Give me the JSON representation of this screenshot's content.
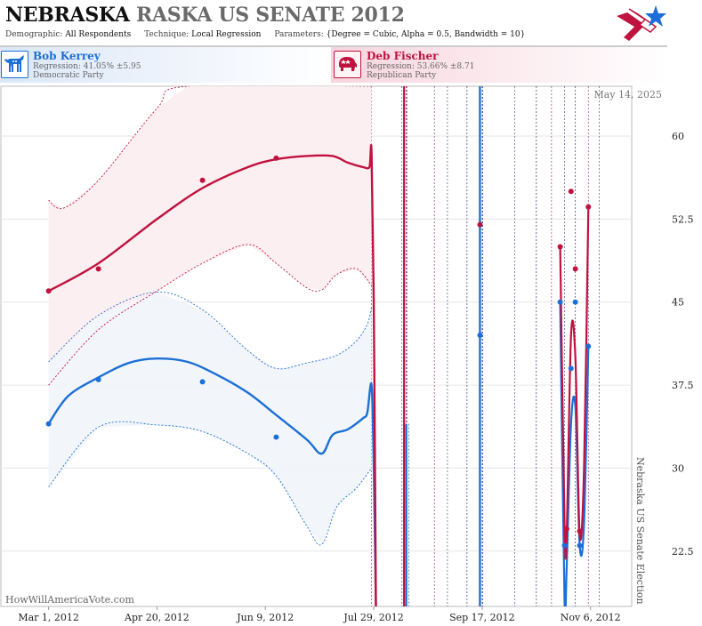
{
  "header": {
    "title_state": "NEBRASKA",
    "title_race": "RASKA US SENATE 2012",
    "demographic_label": "Demographic:",
    "demographic": "All Respondents",
    "technique_label": "Technique:",
    "technique": "Local Regression",
    "parameters_label": "Parameters:",
    "parameters": "{Degree = Cubic, Alpha = 0.5, Bandwidth = 10}"
  },
  "candidates": [
    {
      "name": "Bob Kerrey",
      "regression": "Regression: 41.05% ±5.95",
      "party": "Democratic Party",
      "icon": "donkey-icon",
      "color": "#1c6fd6"
    },
    {
      "name": "Deb Fischer",
      "regression": "Regression: 53.66% ±8.71",
      "party": "Republican Party",
      "icon": "elephant-icon",
      "color": "#c0123e"
    }
  ],
  "colors": {
    "dem": "#1c6fd6",
    "rep": "#c0123e",
    "dem_band": "#f1f5fb",
    "rep_band": "#fcedf1"
  },
  "date_label": "May 14, 2025",
  "vertical_label": "Nebraska US Senate Election",
  "credit": "HowWillAmericaVote.com",
  "chart_data": {
    "type": "line",
    "ylim": [
      17.5,
      64.5
    ],
    "yticks": [
      22.5,
      30,
      37.5,
      45,
      52.5,
      60
    ],
    "ytick_labels": [
      "22.5",
      "30",
      "37.5",
      "45",
      "52.5",
      "60"
    ],
    "xlim": [
      "2012-02-08",
      "2012-11-25"
    ],
    "xticks": [
      "2012-03-01",
      "2012-04-20",
      "2012-06-09",
      "2012-07-29",
      "2012-09-17",
      "2012-11-06"
    ],
    "xtick_labels": [
      "Mar 1, 2012",
      "Apr 20, 2012",
      "Jun 9, 2012",
      "Jul 29, 2012",
      "Sep 17, 2012",
      "Nov 6, 2012"
    ],
    "poll_dates": [
      "2012-07-28",
      "2012-08-11",
      "2012-08-13",
      "2012-08-26",
      "2012-09-01",
      "2012-09-10",
      "2012-09-17",
      "2012-10-02",
      "2012-10-12",
      "2012-10-19",
      "2012-10-25",
      "2012-10-30",
      "2012-11-05",
      "2012-11-10"
    ],
    "series": [
      {
        "name": "Bob Kerrey",
        "color": "#1c6fd6",
        "points": [
          [
            "2012-03-01",
            34
          ],
          [
            "2012-03-24",
            38
          ],
          [
            "2012-05-11",
            37.8
          ],
          [
            "2012-06-14",
            32.8
          ],
          [
            "2012-09-16",
            42
          ],
          [
            "2012-10-23",
            45
          ],
          [
            "2012-10-25",
            23
          ],
          [
            "2012-10-28",
            39
          ],
          [
            "2012-10-30",
            45
          ],
          [
            "2012-11-01",
            23
          ],
          [
            "2012-11-05",
            41
          ]
        ],
        "line": [
          [
            "2012-03-01",
            34
          ],
          [
            "2012-03-10",
            36.5
          ],
          [
            "2012-03-24",
            38.2
          ],
          [
            "2012-04-07",
            39.5
          ],
          [
            "2012-04-20",
            39.9
          ],
          [
            "2012-05-04",
            39.6
          ],
          [
            "2012-05-18",
            38.4
          ],
          [
            "2012-06-01",
            36.8
          ],
          [
            "2012-06-14",
            34.8
          ],
          [
            "2012-06-28",
            32.6
          ],
          [
            "2012-07-05",
            31.3
          ],
          [
            "2012-07-10",
            33
          ],
          [
            "2012-07-17",
            33.5
          ],
          [
            "2012-07-24",
            34.5
          ],
          [
            "2012-07-26",
            35
          ],
          [
            "2012-07-28",
            37.5
          ],
          [
            "2012-07-29",
            30
          ],
          [
            "2012-07-30",
            17.5
          ]
        ],
        "upper": [
          [
            "2012-03-01",
            39.6
          ],
          [
            "2012-03-24",
            43.8
          ],
          [
            "2012-04-20",
            45.9
          ],
          [
            "2012-05-11",
            44.3
          ],
          [
            "2012-06-01",
            40.6
          ],
          [
            "2012-06-14",
            39
          ],
          [
            "2012-06-28",
            39.5
          ],
          [
            "2012-07-12",
            40.2
          ],
          [
            "2012-07-21",
            41.5
          ],
          [
            "2012-07-26",
            43
          ],
          [
            "2012-07-28",
            44.5
          ]
        ],
        "lower": [
          [
            "2012-03-01",
            28.3
          ],
          [
            "2012-03-24",
            33.7
          ],
          [
            "2012-04-20",
            33.9
          ],
          [
            "2012-05-11",
            33.3
          ],
          [
            "2012-06-01",
            31.3
          ],
          [
            "2012-06-14",
            29.3
          ],
          [
            "2012-06-28",
            24.8
          ],
          [
            "2012-07-05",
            23.1
          ],
          [
            "2012-07-12",
            26.5
          ],
          [
            "2012-07-21",
            28.2
          ],
          [
            "2012-07-28",
            30
          ]
        ]
      },
      {
        "name": "Deb Fischer",
        "color": "#c0123e",
        "points": [
          [
            "2012-03-01",
            46
          ],
          [
            "2012-03-24",
            48
          ],
          [
            "2012-05-11",
            56
          ],
          [
            "2012-06-14",
            58
          ],
          [
            "2012-09-16",
            52
          ],
          [
            "2012-10-23",
            50
          ],
          [
            "2012-10-26",
            24.5
          ],
          [
            "2012-10-28",
            55
          ],
          [
            "2012-10-30",
            48
          ],
          [
            "2012-11-01",
            24.3
          ],
          [
            "2012-11-05",
            53.6
          ]
        ],
        "line": [
          [
            "2012-03-01",
            46
          ],
          [
            "2012-03-24",
            48.5
          ],
          [
            "2012-04-20",
            52.5
          ],
          [
            "2012-05-11",
            55.3
          ],
          [
            "2012-06-01",
            57.2
          ],
          [
            "2012-06-14",
            57.9
          ],
          [
            "2012-06-28",
            58.2
          ],
          [
            "2012-07-10",
            58.2
          ],
          [
            "2012-07-17",
            57.6
          ],
          [
            "2012-07-24",
            57.2
          ],
          [
            "2012-07-27",
            57.2
          ],
          [
            "2012-07-28",
            58.5
          ],
          [
            "2012-07-29",
            45
          ],
          [
            "2012-07-30",
            17.5
          ]
        ],
        "upper": [
          [
            "2012-03-01",
            54.2
          ],
          [
            "2012-03-08",
            53.5
          ],
          [
            "2012-03-24",
            56
          ],
          [
            "2012-04-20",
            62.5
          ],
          [
            "2012-05-04",
            64.5
          ],
          [
            "2012-07-28",
            64.5
          ]
        ],
        "lower": [
          [
            "2012-03-01",
            37.5
          ],
          [
            "2012-03-24",
            42.5
          ],
          [
            "2012-04-20",
            46
          ],
          [
            "2012-05-11",
            48.5
          ],
          [
            "2012-06-01",
            50.2
          ],
          [
            "2012-06-14",
            48.5
          ],
          [
            "2012-06-28",
            46.3
          ],
          [
            "2012-07-05",
            46.1
          ],
          [
            "2012-07-12",
            47.5
          ],
          [
            "2012-07-21",
            48
          ],
          [
            "2012-07-28",
            46.5
          ]
        ]
      }
    ],
    "spikes": [
      {
        "series": "Deb Fischer",
        "date": "2012-08-12",
        "min": 17.5,
        "max": 64.5
      },
      {
        "series": "Bob Kerrey",
        "date": "2012-08-13",
        "min": 17.5,
        "max": 34
      },
      {
        "series": "Deb Fischer",
        "date": "2012-09-16",
        "min": 17.5,
        "max": 64.5
      },
      {
        "series": "Bob Kerrey",
        "date": "2012-09-16",
        "min": 17.5,
        "max": 64.5
      }
    ]
  }
}
